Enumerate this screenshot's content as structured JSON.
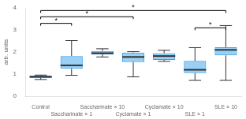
{
  "chart_data": {
    "type": "boxplot",
    "ylabel": "arb. units",
    "categories": [
      "Control",
      "Saccharinate × 1",
      "Saccharinate × 10",
      "Cyclamate × 1",
      "Cyclamate × 10",
      "SLE × 1",
      "SLE × 10"
    ],
    "values": [
      {
        "whislo": 0.76,
        "q1": 0.84,
        "med": 0.88,
        "q3": 0.93,
        "whishi": 0.96
      },
      {
        "whislo": 0.95,
        "q1": 1.25,
        "med": 1.4,
        "q3": 1.82,
        "whishi": 2.52
      },
      {
        "whislo": 1.78,
        "q1": 1.9,
        "med": 1.95,
        "q3": 2.05,
        "whishi": 2.15
      },
      {
        "whislo": 0.88,
        "q1": 1.55,
        "med": 1.78,
        "q3": 1.98,
        "whishi": 2.02
      },
      {
        "whislo": 1.58,
        "q1": 1.65,
        "med": 1.82,
        "q3": 1.95,
        "whishi": 2.08
      },
      {
        "whislo": 0.72,
        "q1": 1.05,
        "med": 1.2,
        "q3": 1.6,
        "whishi": 2.2
      },
      {
        "whislo": 0.72,
        "q1": 1.85,
        "med": 2.1,
        "q3": 2.22,
        "whishi": 3.2
      }
    ],
    "brackets": [
      {
        "from": "Control",
        "to": "Saccharinate × 1",
        "y": 3.3,
        "label": "*"
      },
      {
        "from": "Control",
        "to": "Cyclamate × 1",
        "y": 3.6,
        "label": "*"
      },
      {
        "from": "Control",
        "to": "SLE × 10",
        "y": 3.88,
        "label": "*"
      },
      {
        "from": "SLE × 1",
        "to": "SLE × 10",
        "y": 3.1,
        "label": "*"
      }
    ],
    "ylim": [
      0,
      4
    ],
    "yticks": [
      0,
      1,
      2,
      3,
      4
    ],
    "grid": false
  }
}
